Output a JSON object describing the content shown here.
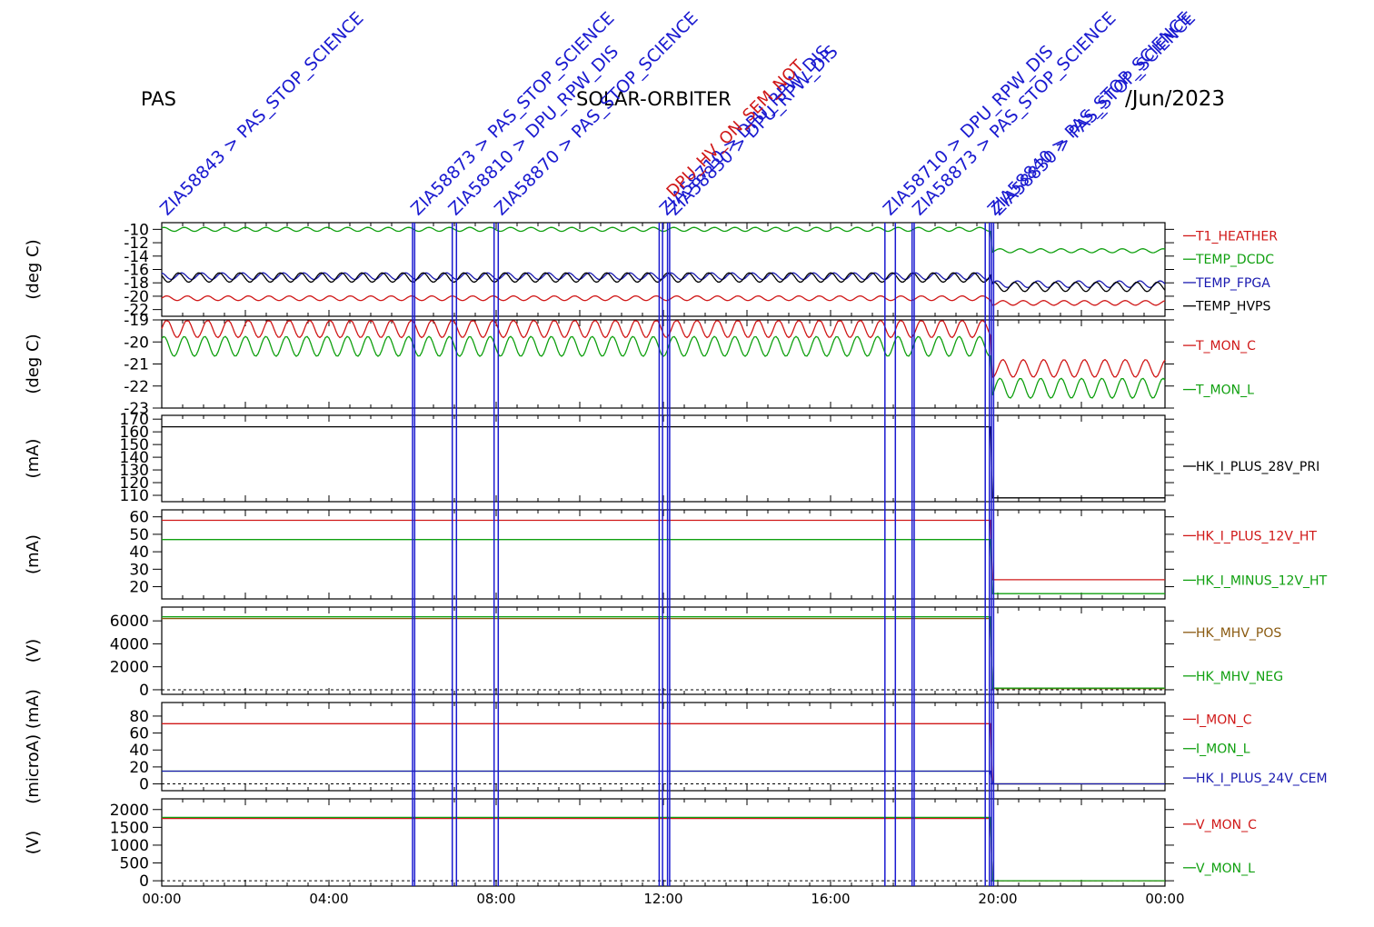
{
  "header": {
    "instrument": "PAS",
    "mission": "SOLAR-ORBITER",
    "date_fragment": "/Jun/2023"
  },
  "colors": {
    "annotation": "#1a1ad0",
    "red": "#d01818",
    "green": "#10a010",
    "blue": "#1a1ab0",
    "black": "#000000",
    "brown": "#8a5a10"
  },
  "annotations": {
    "top_labels": [
      {
        "time_h": 0.0,
        "text": "ZIA58843 > PAS_STOP_SCIENCE"
      },
      {
        "time_h": 6.0,
        "text": "ZIA58873 > PAS_STOP_SCIENCE"
      },
      {
        "time_h": 6.9,
        "text": "ZIA58810 > DPU_RPW_DIS"
      },
      {
        "time_h": 8.0,
        "text": "ZIA58870 > PAS_STOP_SCIENCE"
      },
      {
        "time_h": 11.95,
        "text": "ZIA58710 > DPU_RPW_DIS"
      },
      {
        "time_h": 12.15,
        "text": "ZIA58830 > DPU_RPW_DIS"
      },
      {
        "time_h": 17.3,
        "text": "ZIA58710 > DPU_RPW_DIS"
      },
      {
        "time_h": 18.0,
        "text": "ZIA58873 > PAS_STOP_SCIENCE"
      },
      {
        "time_h": 19.8,
        "text": "ZIA58840 > PAS_STOP_SCIENCE"
      },
      {
        "time_h": 19.9,
        "text": "ZIA58830 > PAS_STOP_SCIENCE"
      }
    ],
    "red_label": {
      "time_h": 12.15,
      "text": "DPU_HV_ON_SEM_NOT"
    },
    "marker_lines_h": [
      6.0,
      6.05,
      6.95,
      7.05,
      7.95,
      8.05,
      11.9,
      11.98,
      12.1,
      12.15,
      17.3,
      17.55,
      17.95,
      18.0,
      19.7,
      19.8,
      19.85,
      19.9
    ]
  },
  "chart_data": [
    {
      "type": "line",
      "ylabel": "(deg C)",
      "ylim": [
        -23,
        -9
      ],
      "ticks": [
        -10,
        -12,
        -14,
        -16,
        -18,
        -20,
        -22
      ],
      "tick_labels": [
        "-10",
        "-12",
        "-14",
        "-16",
        "-18",
        "-20",
        "-22"
      ],
      "series": [
        {
          "name": "T1_HEATHER",
          "color": "#d01818",
          "y_before": -20.3,
          "y_after": -21.0,
          "amp": 0.35
        },
        {
          "name": "TEMP_DCDC",
          "color": "#10a010",
          "y_before": -10.0,
          "y_after": -13.2,
          "amp": 0.3
        },
        {
          "name": "TEMP_FPGA",
          "color": "#1a1ab0",
          "y_before": -17.0,
          "y_after": -18.2,
          "amp": 0.5
        },
        {
          "name": "TEMP_HVPS",
          "color": "#000000",
          "y_before": -17.2,
          "y_after": -18.6,
          "amp": 0.7
        }
      ]
    },
    {
      "type": "line",
      "ylabel": "(deg C)",
      "ylim": [
        -23,
        -19
      ],
      "ticks": [
        -19,
        -20,
        -21,
        -22,
        -23
      ],
      "tick_labels": [
        "-19",
        "-20",
        "-21",
        "-22",
        "-23"
      ],
      "series": [
        {
          "name": "T_MON_C",
          "color": "#d01818",
          "y_before": -19.4,
          "y_after": -21.2,
          "amp": 0.4
        },
        {
          "name": "T_MON_L",
          "color": "#10a010",
          "y_before": -20.2,
          "y_after": -22.1,
          "amp": 0.45
        }
      ]
    },
    {
      "type": "line",
      "ylabel": "(mA)",
      "ylim": [
        105,
        173
      ],
      "ticks": [
        170,
        160,
        150,
        140,
        130,
        120,
        110
      ],
      "tick_labels": [
        "170",
        "160",
        "150",
        "140",
        "130",
        "120",
        "110"
      ],
      "series": [
        {
          "name": "HK_I_PLUS_28V_PRI",
          "color": "#000000",
          "y_before": 164,
          "y_after": 108,
          "amp": 0
        }
      ]
    },
    {
      "type": "line",
      "ylabel": "(mA)",
      "ylim": [
        13,
        64
      ],
      "ticks": [
        60,
        50,
        40,
        30,
        20
      ],
      "tick_labels": [
        "60",
        "50",
        "40",
        "30",
        "20"
      ],
      "series": [
        {
          "name": "HK_I_PLUS_12V_HT",
          "color": "#d01818",
          "y_before": 58,
          "y_after": 24,
          "amp": 0
        },
        {
          "name": "HK_I_MINUS_12V_HT",
          "color": "#10a010",
          "y_before": 47,
          "y_after": 16,
          "amp": 0
        }
      ]
    },
    {
      "type": "line",
      "ylabel": "(V)",
      "ylim": [
        -400,
        7200
      ],
      "ticks": [
        6000,
        4000,
        2000,
        0
      ],
      "tick_labels": [
        "6000",
        "4000",
        "2000",
        "0"
      ],
      "series": [
        {
          "name": "HK_MHV_POS",
          "color": "#8a5a10",
          "y_before": 6200,
          "y_after": 100,
          "amp": 0
        },
        {
          "name": "HK_MHV_NEG",
          "color": "#10a010",
          "y_before": 6350,
          "y_after": 150,
          "amp": 0
        }
      ]
    },
    {
      "type": "line",
      "ylabel": "(microA) (mA)",
      "ylim": [
        -8,
        96
      ],
      "ticks": [
        80,
        60,
        40,
        20,
        0
      ],
      "tick_labels": [
        "80",
        "60",
        "40",
        "20",
        "0"
      ],
      "series": [
        {
          "name": "I_MON_C",
          "color": "#d01818",
          "y_before": 71,
          "y_after": 0,
          "amp": 0
        },
        {
          "name": "I_MON_L",
          "color": "#10a010",
          "y_before": 15,
          "y_after": 0,
          "amp": 0
        },
        {
          "name": "HK_I_PLUS_24V_CEM",
          "color": "#1a1ab0",
          "y_before": 15,
          "y_after": 0,
          "amp": 0
        }
      ]
    },
    {
      "type": "line",
      "ylabel": "(V)",
      "ylim": [
        -150,
        2300
      ],
      "ticks": [
        2000,
        1500,
        1000,
        500,
        0
      ],
      "tick_labels": [
        "2000",
        "1500",
        "1000",
        "500",
        "0"
      ],
      "series": [
        {
          "name": "V_MON_C",
          "color": "#d01818",
          "y_before": 1750,
          "y_after": 0,
          "amp": 0
        },
        {
          "name": "V_MON_L",
          "color": "#10a010",
          "y_before": 1780,
          "y_after": 0,
          "amp": 0
        }
      ]
    }
  ],
  "x_axis": {
    "range_h": [
      0,
      24
    ],
    "tick_labels": [
      "00:00",
      "04:00",
      "08:00",
      "12:00",
      "16:00",
      "20:00",
      "00:00"
    ],
    "change_time_h": 19.85
  }
}
